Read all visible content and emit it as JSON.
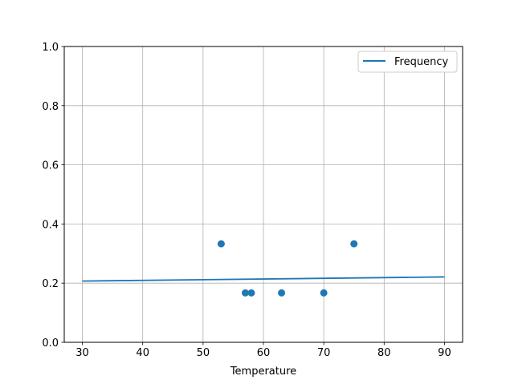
{
  "chart_data": {
    "type": "scatter",
    "title": "",
    "xlabel": "Temperature",
    "ylabel": "",
    "xlim": [
      27,
      93
    ],
    "ylim": [
      0,
      1.0
    ],
    "xticks": [
      30,
      40,
      50,
      60,
      70,
      80,
      90
    ],
    "xtick_labels": [
      "30",
      "40",
      "50",
      "60",
      "70",
      "80",
      "90"
    ],
    "yticks": [
      0,
      0.2,
      0.4,
      0.6,
      0.8,
      1.0
    ],
    "ytick_labels": [
      "0.0",
      "0.2",
      "0.4",
      "0.6",
      "0.8",
      "1.0"
    ],
    "grid": true,
    "legend_position": "top-right",
    "color": "#1f77b4",
    "line_series": {
      "name": "Frequency",
      "x": [
        30,
        90
      ],
      "y": [
        0.207,
        0.221
      ]
    },
    "scatter_series": {
      "x": [
        53,
        57,
        58,
        63,
        70,
        75
      ],
      "y": [
        0.333,
        0.167,
        0.167,
        0.167,
        0.167,
        0.333
      ]
    }
  }
}
